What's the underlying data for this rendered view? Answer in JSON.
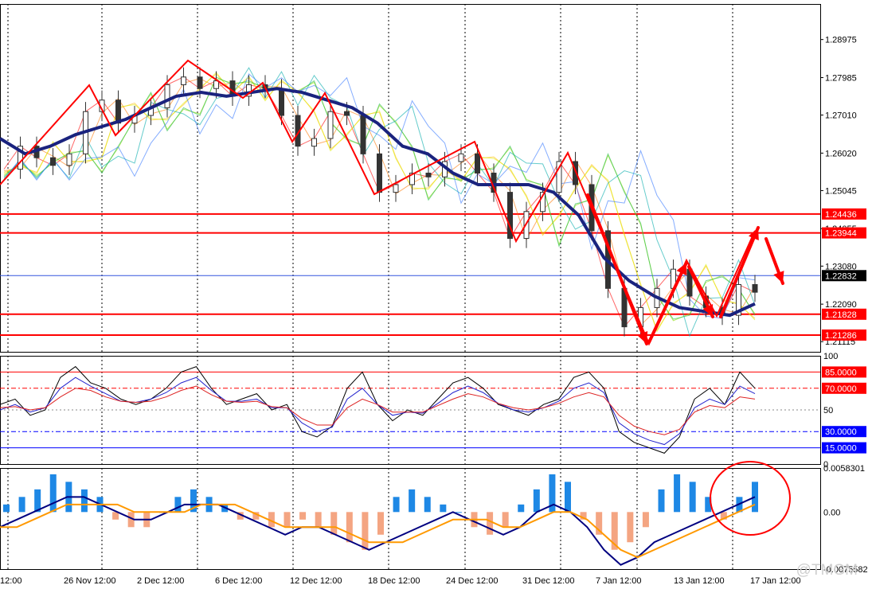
{
  "chart_data": [
    {
      "type": "candlestick",
      "panel": "price",
      "price_labels": [
        "1.28975",
        "1.27985",
        "1.27010",
        "1.26020",
        "1.25045",
        "1.24055",
        "1.23080",
        "1.22090",
        "1.21115"
      ],
      "ylim": [
        1.2085,
        1.299
      ],
      "grid": "vertical-dotted",
      "series": [
        {
          "name": "close",
          "values": [
            1.256,
            1.262,
            1.259,
            1.257,
            1.26,
            1.271,
            1.274,
            1.268,
            1.27,
            1.272,
            1.278,
            1.28,
            1.277,
            1.279,
            1.275,
            1.278,
            1.277,
            1.27,
            1.262,
            1.264,
            1.271,
            1.27,
            1.26,
            1.25,
            1.252,
            1.255,
            1.254,
            1.258,
            1.26,
            1.255,
            1.25,
            1.238,
            1.245,
            1.25,
            1.258,
            1.252,
            1.24,
            1.225,
            1.215,
            1.22,
            1.225,
            1.23,
            1.223,
            1.22,
            1.218,
            1.226,
            1.224
          ]
        }
      ],
      "ema_thick": [
        1.264,
        1.26,
        1.262,
        1.265,
        1.267,
        1.269,
        1.272,
        1.275,
        1.276,
        1.275,
        1.276,
        1.277,
        1.276,
        1.274,
        1.272,
        1.268,
        1.262,
        1.26,
        1.255,
        1.252,
        1.252,
        1.252,
        1.25,
        1.244,
        1.233,
        1.227,
        1.223,
        1.22,
        1.219,
        1.218,
        1.221
      ],
      "horizontal_levels": [
        {
          "value": 1.24436,
          "label": "1.24436",
          "color": "#ff0000"
        },
        {
          "value": 1.23944,
          "label": "1.23944",
          "color": "#ff0000"
        },
        {
          "value": 1.22832,
          "label": "1.22832",
          "color": "#000000"
        },
        {
          "value": 1.21828,
          "label": "1.21828",
          "color": "#ff0000"
        },
        {
          "value": 1.21286,
          "label": "1.21286",
          "color": "#ff0000"
        }
      ]
    },
    {
      "type": "line",
      "panel": "stochastic",
      "ylim": [
        0,
        100
      ],
      "tick_labels": [
        "100",
        "50",
        "0"
      ],
      "levels": [
        {
          "value": 85,
          "label": "85.0000",
          "color": "#ff0000"
        },
        {
          "value": 70,
          "label": "70.0000",
          "color": "#ff0000"
        },
        {
          "value": 30,
          "label": "30.0000",
          "color": "#0000ff"
        },
        {
          "value": 15,
          "label": "15.0000",
          "color": "#0000ff"
        }
      ],
      "series": [
        {
          "values": [
            55,
            60,
            45,
            50,
            80,
            90,
            75,
            70,
            60,
            55,
            60,
            70,
            85,
            90,
            70,
            55,
            60,
            65,
            50,
            55,
            30,
            25,
            35,
            70,
            85,
            55,
            40,
            50,
            45,
            60,
            75,
            80,
            70,
            55,
            50,
            45,
            55,
            60,
            80,
            85,
            70,
            30,
            20,
            15,
            10,
            25,
            60,
            70,
            55,
            85,
            70
          ]
        },
        {
          "values": [
            50,
            55,
            48,
            52,
            70,
            80,
            72,
            65,
            58,
            57,
            60,
            66,
            75,
            80,
            68,
            58,
            58,
            60,
            52,
            52,
            38,
            30,
            34,
            60,
            70,
            55,
            45,
            48,
            47,
            56,
            66,
            72,
            66,
            56,
            50,
            48,
            52,
            58,
            70,
            75,
            66,
            38,
            28,
            22,
            18,
            28,
            52,
            60,
            55,
            72,
            65
          ]
        },
        {
          "values": [
            52,
            53,
            50,
            52,
            62,
            70,
            68,
            62,
            58,
            57,
            58,
            62,
            68,
            72,
            64,
            58,
            57,
            58,
            53,
            52,
            42,
            36,
            36,
            52,
            60,
            55,
            48,
            48,
            48,
            54,
            60,
            65,
            62,
            56,
            52,
            50,
            52,
            56,
            62,
            66,
            62,
            45,
            35,
            30,
            27,
            32,
            48,
            54,
            52,
            62,
            60
          ]
        }
      ]
    },
    {
      "type": "bar+line",
      "panel": "macd",
      "tick_labels": [
        "0.0058301",
        "0.00",
        "-0.0075582"
      ],
      "ylim": [
        -0.0075582,
        0.0058301
      ],
      "histogram": [
        0.001,
        0.002,
        0.003,
        0.005,
        0.004,
        0.003,
        0.002,
        -0.001,
        -0.002,
        -0.002,
        0.0,
        0.002,
        0.003,
        0.002,
        0.001,
        -0.001,
        -0.001,
        -0.002,
        -0.002,
        -0.001,
        -0.002,
        -0.003,
        -0.004,
        -0.005,
        -0.003,
        0.002,
        0.003,
        0.002,
        0.001,
        0.0,
        -0.002,
        -0.003,
        -0.002,
        0.001,
        0.003,
        0.005,
        0.004,
        -0.001,
        -0.003,
        -0.005,
        -0.004,
        -0.002,
        0.003,
        0.005,
        0.004,
        0.002,
        -0.001,
        0.002,
        0.004
      ],
      "series": [
        {
          "values": [
            -0.002,
            -0.001,
            0.0,
            0.001,
            0.002,
            0.002,
            0.001,
            0.0,
            -0.001,
            -0.001,
            0.0,
            0.001,
            0.001,
            0.001,
            0.0,
            -0.001,
            -0.002,
            -0.003,
            -0.002,
            -0.002,
            -0.003,
            -0.004,
            -0.005,
            -0.004,
            -0.003,
            -0.002,
            -0.001,
            0.0,
            -0.001,
            -0.002,
            -0.003,
            -0.002,
            0.0,
            0.001,
            0.0,
            -0.002,
            -0.005,
            -0.007,
            -0.006,
            -0.004,
            -0.003,
            -0.002,
            -0.001,
            0.0,
            0.001,
            0.002
          ]
        },
        {
          "values": [
            -0.002,
            -0.002,
            -0.001,
            0.0,
            0.001,
            0.001,
            0.001,
            0.001,
            0.0,
            0.0,
            0.0,
            0.0,
            0.001,
            0.001,
            0.001,
            0.0,
            -0.001,
            -0.002,
            -0.002,
            -0.002,
            -0.002,
            -0.003,
            -0.004,
            -0.004,
            -0.004,
            -0.003,
            -0.002,
            -0.001,
            -0.001,
            -0.001,
            -0.002,
            -0.002,
            -0.001,
            0.0,
            0.0,
            -0.001,
            -0.003,
            -0.005,
            -0.006,
            -0.005,
            -0.004,
            -0.003,
            -0.002,
            -0.001,
            0.0,
            0.001
          ]
        }
      ]
    }
  ],
  "dates": [
    "12:00",
    "26 Nov 12:00",
    "2 Dec 12:00",
    "6 Dec 12:00",
    "12 Dec 12:00",
    "18 Dec 12:00",
    "24 Dec 12:00",
    "31 Dec 12:00",
    "7 Jan 12:00",
    "13 Jan 12:00",
    "17 Jan 12:00"
  ],
  "watermark": "@TMGM",
  "colors": {
    "ema": "#1a237e",
    "level_red": "#ff0000",
    "arrow": "#ff0000",
    "hist_pos": "#1e88e5",
    "hist_neg": "#f4a582",
    "macd": "#000080",
    "signal": "#ff9900",
    "circle": "#ff0000"
  }
}
